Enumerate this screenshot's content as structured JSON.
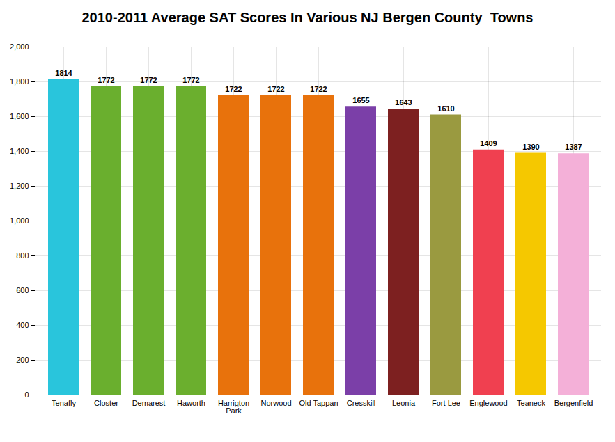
{
  "chart_data": {
    "type": "bar",
    "title": "2010-2011 Average SAT Scores In Various NJ Bergen County  Towns",
    "categories": [
      "Tenafly",
      "Closter",
      "Demarest",
      "Haworth",
      "Harrigton\nPark",
      "Norwood",
      "Old Tappan",
      "Cresskill",
      "Leonia",
      "Fort Lee",
      "Englewood",
      "Teaneck",
      "Bergenfield"
    ],
    "values": [
      1814,
      1772,
      1772,
      1772,
      1722,
      1722,
      1722,
      1655,
      1643,
      1610,
      1409,
      1390,
      1387
    ],
    "colors": [
      "#29C5DC",
      "#6AAF2E",
      "#6AAF2E",
      "#6BAF2E",
      "#E8720C",
      "#E8720C",
      "#E8720C",
      "#7B3FA8",
      "#7D2020",
      "#9A9A40",
      "#F04050",
      "#F5C800",
      "#F4B0D8"
    ],
    "ylim": [
      0,
      2000
    ],
    "yticks": [
      0,
      200,
      400,
      600,
      800,
      1000,
      1200,
      1400,
      1600,
      1800,
      2000
    ],
    "grid": true,
    "data_labels": true
  }
}
